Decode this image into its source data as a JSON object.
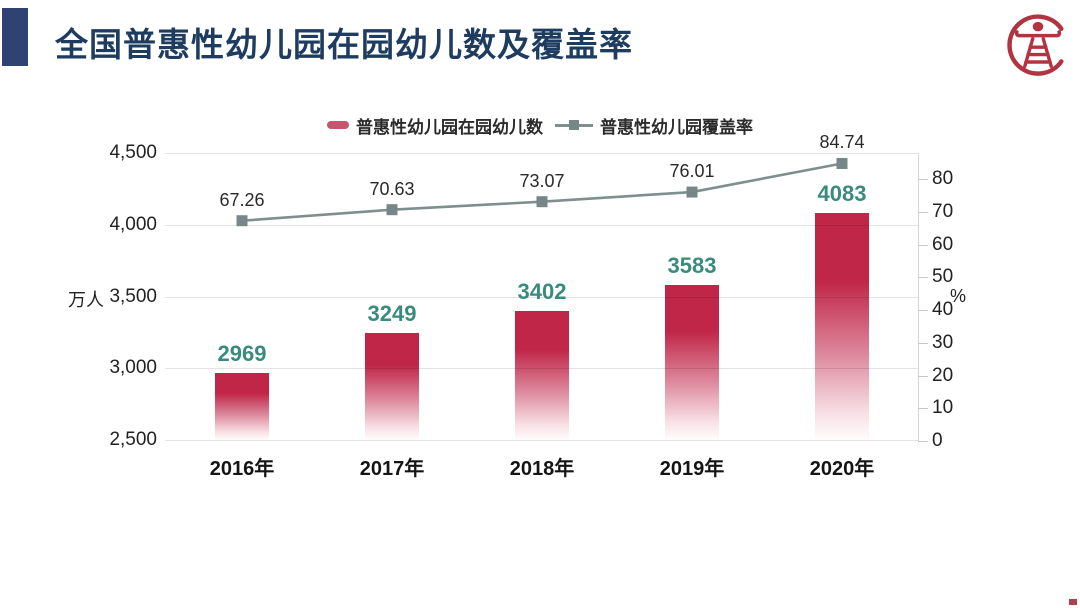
{
  "header": {
    "title": "全国普惠性幼儿园在园幼儿数及覆盖率",
    "accent_color": "#2e4372",
    "title_color": "#1e3c5f",
    "logo_icon": "education-seal-logo",
    "logo_color": "#b13440"
  },
  "chart_data": {
    "type": "bar",
    "subtype": "combo-bar-line",
    "categories": [
      "2016年",
      "2017年",
      "2018年",
      "2019年",
      "2020年"
    ],
    "series": [
      {
        "name": "普惠性幼儿园在园幼儿数",
        "type": "bar",
        "axis": "left",
        "values": [
          2969,
          3249,
          3402,
          3583,
          4083
        ],
        "color": "#c02647",
        "value_label_color": "#3a8b7d"
      },
      {
        "name": "普惠性幼儿园覆盖率",
        "type": "line",
        "axis": "right",
        "values": [
          67.26,
          70.63,
          73.07,
          76.01,
          84.74
        ],
        "value_labels": [
          "67.26",
          "70.63",
          "73.07",
          "76.01",
          "84.74"
        ],
        "color": "#7f8e8e",
        "marker": "square",
        "value_label_color": "#2a2a2a"
      }
    ],
    "left_axis": {
      "unit": "万人",
      "min": 2500,
      "max": 4500,
      "step": 500,
      "tick_labels": [
        "2,500",
        "3,000",
        "3,500",
        "4,000",
        "4,500"
      ]
    },
    "right_axis": {
      "unit": "%",
      "min": 0,
      "max": 80,
      "step": 10,
      "tick_labels": [
        "0",
        "10",
        "20",
        "30",
        "40",
        "50",
        "60",
        "70",
        "80"
      ]
    },
    "grid": true,
    "legend_position": "top-center"
  }
}
